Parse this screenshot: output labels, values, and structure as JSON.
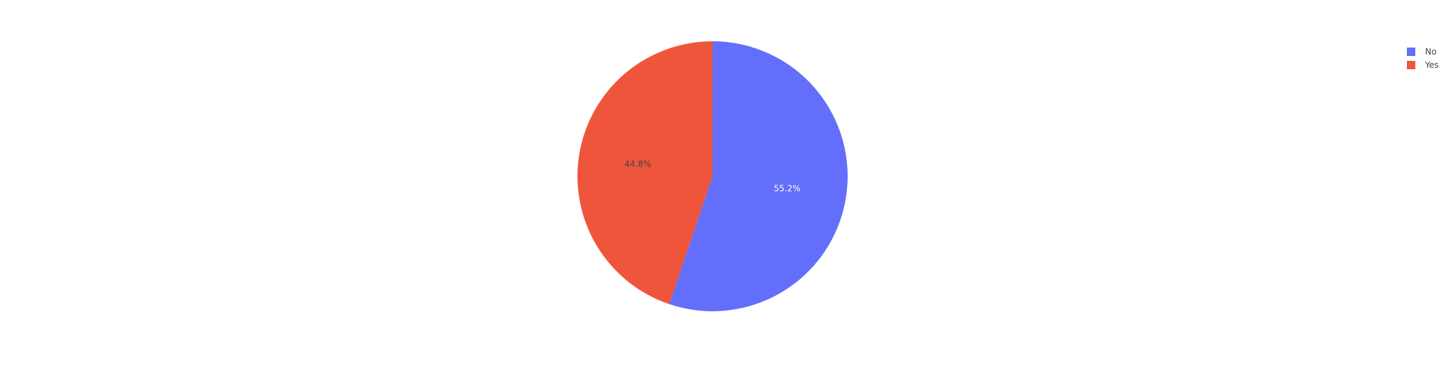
{
  "chart_data": {
    "type": "pie",
    "slices": [
      {
        "label": "No",
        "value": 55.2,
        "text": "55.2%",
        "color": "#636efa",
        "text_color": "#ffffff"
      },
      {
        "label": "Yes",
        "value": 44.8,
        "text": "44.8%",
        "color": "#ef553b",
        "text_color": "#444444"
      }
    ],
    "start": "12 o'clock",
    "direction": "clockwise",
    "legend": {
      "placement": "top-right",
      "entries": [
        "No",
        "Yes"
      ]
    }
  }
}
